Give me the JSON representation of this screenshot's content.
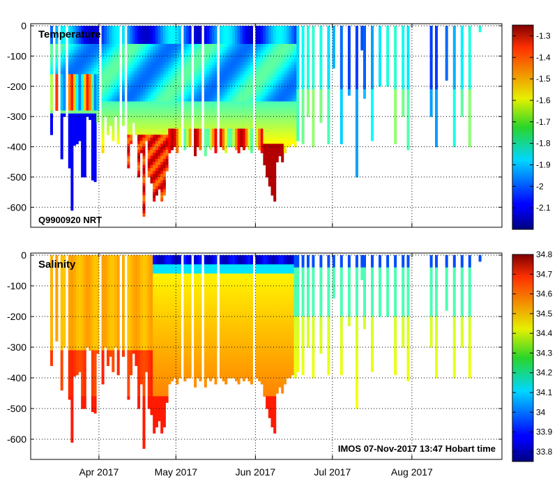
{
  "chart_data": [
    {
      "type": "heatmap",
      "title": "Temperature",
      "annotation": "Q9900920 NRT",
      "ylim": [
        -650,
        0
      ],
      "yticks": [
        0,
        -100,
        -200,
        -300,
        -400,
        -500,
        -600
      ],
      "ytick_labels": [
        "0",
        "-100",
        "-200",
        "-300",
        "-400",
        "-500",
        "-600"
      ],
      "colorbar": {
        "min": -2.2,
        "max": -1.25,
        "ticks": [
          -1.3,
          -1.4,
          -1.5,
          -1.6,
          -1.7,
          -1.8,
          -1.9,
          -2,
          -2.1
        ],
        "tick_labels": [
          "-1.3",
          "-1.4",
          "-1.5",
          "-1.6",
          "-1.7",
          "-1.8",
          "-1.9",
          "-2",
          "-2.1"
        ]
      },
      "grid": true
    },
    {
      "type": "heatmap",
      "title": "Salinity",
      "annotation": "IMOS 07-Nov-2017 13:47 Hobart time",
      "ylim": [
        -650,
        0
      ],
      "yticks": [
        0,
        -100,
        -200,
        -300,
        -400,
        -500,
        -600
      ],
      "ytick_labels": [
        "0",
        "-100",
        "-200",
        "-300",
        "-400",
        "-500",
        "-600"
      ],
      "xtick_labels": [
        "Apr 2017",
        "May 2017",
        "Jun 2017",
        "Jul 2017",
        "Aug 2017"
      ],
      "colorbar": {
        "min": 33.75,
        "max": 34.8,
        "ticks": [
          34.8,
          34.7,
          34.6,
          34.5,
          34.4,
          34.3,
          34.2,
          34.1,
          34,
          33.9,
          33.8
        ],
        "tick_labels": [
          "34.8",
          "34.7",
          "34.6",
          "34.5",
          "34.4",
          "34.3",
          "34.2",
          "34.1",
          "34",
          "33.9",
          "33.8"
        ]
      },
      "grid": true
    }
  ],
  "profiles": [
    {
      "day": 0,
      "depth": -360
    },
    {
      "day": 2,
      "depth": -280
    },
    {
      "day": 4,
      "depth": -440
    },
    {
      "day": 5,
      "depth": -300
    },
    {
      "day": 7,
      "depth": -470
    },
    {
      "day": 8,
      "depth": -610
    },
    {
      "day": 9,
      "depth": -395
    },
    {
      "day": 10,
      "depth": -390
    },
    {
      "day": 11,
      "depth": -380
    },
    {
      "day": 12,
      "depth": -500
    },
    {
      "day": 13,
      "depth": -500
    },
    {
      "day": 14,
      "depth": -300
    },
    {
      "day": 15,
      "depth": -310
    },
    {
      "day": 16,
      "depth": -510
    },
    {
      "day": 17,
      "depth": -515
    },
    {
      "day": 18,
      "depth": -320
    },
    {
      "day": 20,
      "depth": -420
    },
    {
      "day": 21,
      "depth": -300
    },
    {
      "day": 22,
      "depth": -360
    },
    {
      "day": 23,
      "depth": -330
    },
    {
      "day": 24,
      "depth": -380
    },
    {
      "day": 25,
      "depth": -300
    },
    {
      "day": 26,
      "depth": -390
    },
    {
      "day": 28,
      "depth": -330
    },
    {
      "day": 30,
      "depth": -470
    },
    {
      "day": 31,
      "depth": -390
    },
    {
      "day": 32,
      "depth": -320
    },
    {
      "day": 33,
      "depth": -360
    },
    {
      "day": 34,
      "depth": -500
    },
    {
      "day": 35,
      "depth": -420
    },
    {
      "day": 36,
      "depth": -630
    },
    {
      "day": 37,
      "depth": -380
    },
    {
      "day": 38,
      "depth": -500
    },
    {
      "day": 39,
      "depth": -520
    },
    {
      "day": 40,
      "depth": -580
    },
    {
      "day": 41,
      "depth": -560
    },
    {
      "day": 42,
      "depth": -540
    },
    {
      "day": 43,
      "depth": -580
    },
    {
      "day": 44,
      "depth": -560
    },
    {
      "day": 45,
      "depth": -480
    },
    {
      "day": 46,
      "depth": -420
    },
    {
      "day": 47,
      "depth": -410
    },
    {
      "day": 48,
      "depth": -400
    },
    {
      "day": 49,
      "depth": -420
    },
    {
      "day": 50,
      "depth": -400
    },
    {
      "day": 52,
      "depth": -410
    },
    {
      "day": 53,
      "depth": -400
    },
    {
      "day": 54,
      "depth": -400
    },
    {
      "day": 56,
      "depth": -430
    },
    {
      "day": 57,
      "depth": -400
    },
    {
      "day": 58,
      "depth": -410
    },
    {
      "day": 60,
      "depth": -430
    },
    {
      "day": 61,
      "depth": -400
    },
    {
      "day": 62,
      "depth": -410
    },
    {
      "day": 63,
      "depth": -400
    },
    {
      "day": 64,
      "depth": -420
    },
    {
      "day": 66,
      "depth": -400
    },
    {
      "day": 67,
      "depth": -410
    },
    {
      "day": 68,
      "depth": -420
    },
    {
      "day": 69,
      "depth": -400
    },
    {
      "day": 70,
      "depth": -400
    },
    {
      "day": 71,
      "depth": -400
    },
    {
      "day": 72,
      "depth": -410
    },
    {
      "day": 73,
      "depth": -420
    },
    {
      "day": 74,
      "depth": -400
    },
    {
      "day": 75,
      "depth": -410
    },
    {
      "day": 76,
      "depth": -400
    },
    {
      "day": 77,
      "depth": -410
    },
    {
      "day": 78,
      "depth": -420
    },
    {
      "day": 80,
      "depth": -400
    },
    {
      "day": 81,
      "depth": -410
    },
    {
      "day": 82,
      "depth": -420
    },
    {
      "day": 83,
      "depth": -460
    },
    {
      "day": 84,
      "depth": -500
    },
    {
      "day": 85,
      "depth": -530
    },
    {
      "day": 86,
      "depth": -560
    },
    {
      "day": 87,
      "depth": -580
    },
    {
      "day": 88,
      "depth": -450
    },
    {
      "day": 89,
      "depth": -430
    },
    {
      "day": 90,
      "depth": -450
    },
    {
      "day": 91,
      "depth": -420
    },
    {
      "day": 92,
      "depth": -400
    },
    {
      "day": 93,
      "depth": -400
    },
    {
      "day": 94,
      "depth": -390
    },
    {
      "day": 95,
      "depth": -400
    },
    {
      "day": 96,
      "depth": -380
    },
    {
      "day": 98,
      "depth": -390
    },
    {
      "day": 100,
      "depth": -300
    },
    {
      "day": 102,
      "depth": -400
    },
    {
      "day": 105,
      "depth": -320
    },
    {
      "day": 108,
      "depth": -390
    },
    {
      "day": 110,
      "depth": -140
    },
    {
      "day": 113,
      "depth": -390
    },
    {
      "day": 116,
      "depth": -230
    },
    {
      "day": 119,
      "depth": -500
    },
    {
      "day": 121,
      "depth": -80
    },
    {
      "day": 122,
      "depth": -240
    },
    {
      "day": 125,
      "depth": -380
    },
    {
      "day": 128,
      "depth": -200
    },
    {
      "day": 131,
      "depth": -200
    },
    {
      "day": 134,
      "depth": -390
    },
    {
      "day": 137,
      "depth": -300
    },
    {
      "day": 139,
      "depth": -410
    },
    {
      "day": 148,
      "depth": -300
    },
    {
      "day": 150,
      "depth": -400
    },
    {
      "day": 154,
      "depth": -180
    },
    {
      "day": 157,
      "depth": -400
    },
    {
      "day": 160,
      "depth": -300
    },
    {
      "day": 163,
      "depth": -400
    },
    {
      "day": 167,
      "depth": -20
    }
  ]
}
